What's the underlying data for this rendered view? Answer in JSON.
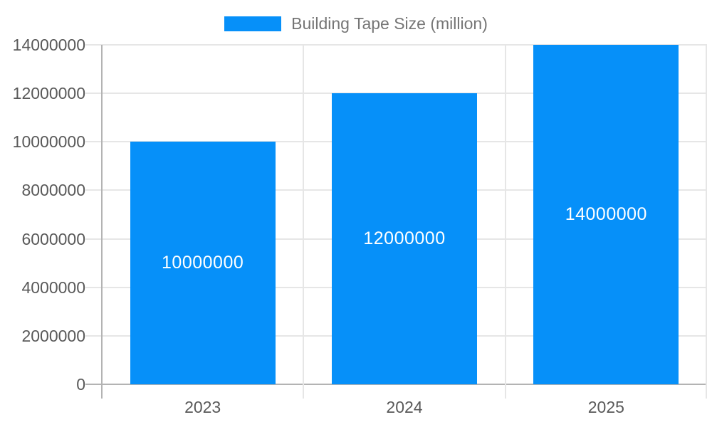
{
  "legend": {
    "label": "Building Tape Size (million)"
  },
  "colors": {
    "bar": "#0690F9",
    "gridline": "#e6e6e6",
    "axis_line": "#b3b3b3",
    "axis_label_text": "#595959",
    "legend_text": "#757575",
    "bar_label_text": "#ffffff",
    "background": "#ffffff"
  },
  "chart_data": {
    "type": "bar",
    "title": "Building Tape Size (million)",
    "categories": [
      "2023",
      "2024",
      "2025"
    ],
    "values": [
      10000000,
      12000000,
      14000000
    ],
    "series": [
      {
        "name": "Building Tape Size (million)",
        "values": [
          10000000,
          12000000,
          14000000
        ]
      }
    ],
    "data_labels_shown": true,
    "xlabel": "",
    "ylabel": "",
    "ylim": [
      0,
      14000000
    ],
    "y_ticks": [
      0,
      2000000,
      4000000,
      6000000,
      8000000,
      10000000,
      12000000,
      14000000
    ],
    "grid": true,
    "legend_position": "top-center"
  }
}
